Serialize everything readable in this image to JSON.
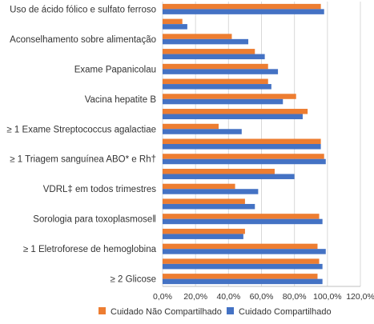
{
  "chart_data": {
    "type": "bar",
    "orientation": "horizontal",
    "categories": [
      "≥ 2 Glicose",
      "",
      "≥ 1 Eletroforese de hemoglobina",
      "",
      "Sorologia para toxoplasmose‖",
      "",
      "VDRL‡ em todos trimestres",
      "",
      "≥ 1 Triagem sanguínea ABO* e Rh†",
      "",
      "≥ 1 Exame Streptococcus agalactiae",
      "",
      "Vacina hepatite B",
      "",
      "Exame Papanicolau",
      "",
      "Aconselhamento sobre alimentação",
      "",
      "Uso de ácido fólico e sulfato ferroso"
    ],
    "series": [
      {
        "name": "Cuidado Não Compartilhado",
        "color": "#ED7D31",
        "values": [
          94,
          95,
          94,
          50,
          95,
          50,
          44,
          68,
          98,
          96,
          34,
          88,
          81,
          64,
          64,
          56,
          42,
          12,
          96
        ]
      },
      {
        "name": "Cuidado Compartilhado",
        "color": "#4472C4",
        "values": [
          97,
          97,
          99,
          49,
          97,
          56,
          58,
          80,
          99,
          96,
          48,
          85,
          73,
          66,
          70,
          62,
          52,
          15,
          98
        ]
      }
    ],
    "xaxis": {
      "min": 0,
      "max": 120,
      "step": 20,
      "tick_labels": [
        "0,0%",
        "20,0%",
        "40,0%",
        "60,0%",
        "80,0%",
        "100,0%",
        "120,0%"
      ]
    },
    "gridlines": true,
    "legend": {
      "position": "bottom"
    }
  }
}
